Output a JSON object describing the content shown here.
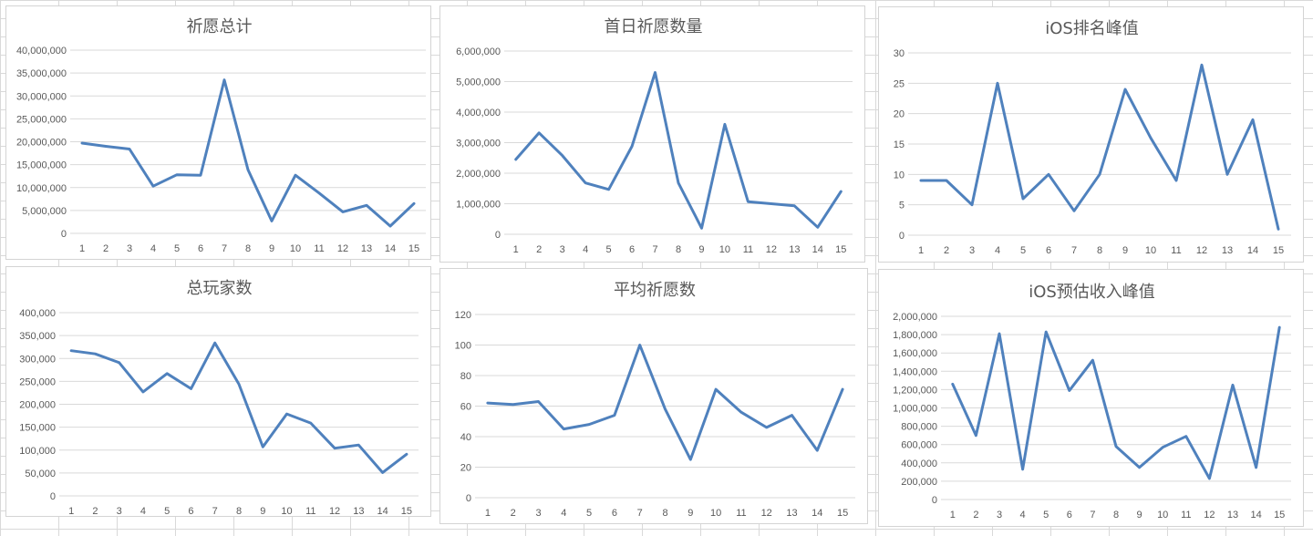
{
  "colors": {
    "series": "#4f81bd",
    "grid": "#d9d9d9",
    "text": "#595959"
  },
  "chart_data": [
    {
      "type": "line",
      "title": "祈愿总计",
      "x": [
        1,
        2,
        3,
        4,
        5,
        6,
        7,
        8,
        9,
        10,
        11,
        12,
        13,
        14,
        15
      ],
      "ylim": [
        0,
        40000000
      ],
      "yticks": [
        0,
        5000000,
        10000000,
        15000000,
        20000000,
        25000000,
        30000000,
        35000000,
        40000000
      ],
      "ytick_labels": [
        "0",
        "5,000,000",
        "10,000,000",
        "15,000,000",
        "20,000,000",
        "25,000,000",
        "30,000,000",
        "35,000,000",
        "40,000,000"
      ],
      "values": [
        19700000,
        19000000,
        18400000,
        10300000,
        12800000,
        12700000,
        33500000,
        13900000,
        2700000,
        12700000,
        8800000,
        4700000,
        6100000,
        1600000,
        6500000
      ],
      "grid": true,
      "legend": "none"
    },
    {
      "type": "line",
      "title": "首日祈愿数量",
      "x": [
        1,
        2,
        3,
        4,
        5,
        6,
        7,
        8,
        9,
        10,
        11,
        12,
        13,
        14,
        15
      ],
      "ylim": [
        0,
        6000000
      ],
      "yticks": [
        0,
        1000000,
        2000000,
        3000000,
        4000000,
        5000000,
        6000000
      ],
      "ytick_labels": [
        "0",
        "1,000,000",
        "2,000,000",
        "3,000,000",
        "4,000,000",
        "5,000,000",
        "6,000,000"
      ],
      "values": [
        2450000,
        3320000,
        2580000,
        1680000,
        1470000,
        2880000,
        5300000,
        1680000,
        200000,
        3600000,
        1070000,
        1000000,
        930000,
        230000,
        1400000
      ],
      "grid": true,
      "legend": "none"
    },
    {
      "type": "line",
      "title": "iOS排名峰值",
      "x": [
        1,
        2,
        3,
        4,
        5,
        6,
        7,
        8,
        9,
        10,
        11,
        12,
        13,
        14,
        15
      ],
      "ylim": [
        0,
        30
      ],
      "yticks": [
        0,
        5,
        10,
        15,
        20,
        25,
        30
      ],
      "ytick_labels": [
        "0",
        "5",
        "10",
        "15",
        "20",
        "25",
        "30"
      ],
      "values": [
        9,
        9,
        5,
        25,
        6,
        10,
        4,
        10,
        24,
        16,
        9,
        28,
        10,
        19,
        1
      ],
      "grid": true,
      "legend": "none"
    },
    {
      "type": "line",
      "title": "总玩家数",
      "x": [
        1,
        2,
        3,
        4,
        5,
        6,
        7,
        8,
        9,
        10,
        11,
        12,
        13,
        14,
        15
      ],
      "ylim": [
        0,
        400000
      ],
      "yticks": [
        0,
        50000,
        100000,
        150000,
        200000,
        250000,
        300000,
        350000,
        400000
      ],
      "ytick_labels": [
        "0",
        "50,000",
        "100,000",
        "150,000",
        "200,000",
        "250,000",
        "300,000",
        "350,000",
        "400,000"
      ],
      "values": [
        317000,
        310000,
        291000,
        227000,
        267000,
        234000,
        334000,
        244000,
        107000,
        179000,
        159000,
        104000,
        111000,
        51000,
        91000
      ],
      "grid": true,
      "legend": "none"
    },
    {
      "type": "line",
      "title": "平均祈愿数",
      "x": [
        1,
        2,
        3,
        4,
        5,
        6,
        7,
        8,
        9,
        10,
        11,
        12,
        13,
        14,
        15
      ],
      "ylim": [
        0,
        120
      ],
      "yticks": [
        0,
        20,
        40,
        60,
        80,
        100,
        120
      ],
      "ytick_labels": [
        "0",
        "20",
        "40",
        "60",
        "80",
        "100",
        "120"
      ],
      "values": [
        62,
        61,
        63,
        45,
        48,
        54,
        100,
        58,
        25,
        71,
        56,
        46,
        54,
        31,
        71
      ],
      "grid": true,
      "legend": "none"
    },
    {
      "type": "line",
      "title": "iOS预估收入峰值",
      "x": [
        1,
        2,
        3,
        4,
        5,
        6,
        7,
        8,
        9,
        10,
        11,
        12,
        13,
        14,
        15
      ],
      "ylim": [
        0,
        2000000
      ],
      "yticks": [
        0,
        200000,
        400000,
        600000,
        800000,
        1000000,
        1200000,
        1400000,
        1600000,
        1800000,
        2000000
      ],
      "ytick_labels": [
        "0",
        "200,000",
        "400,000",
        "600,000",
        "800,000",
        "1,000,000",
        "1,200,000",
        "1,400,000",
        "1,600,000",
        "1,800,000",
        "2,000,000"
      ],
      "values": [
        1260000,
        700000,
        1810000,
        330000,
        1830000,
        1190000,
        1520000,
        580000,
        350000,
        570000,
        690000,
        230000,
        1250000,
        350000,
        1880000
      ],
      "grid": true,
      "legend": "none"
    }
  ]
}
